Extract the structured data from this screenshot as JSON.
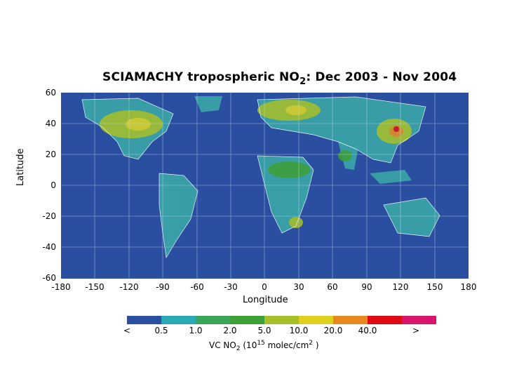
{
  "title": {
    "main": "SCIAMACHY tropospheric NO",
    "sub": "2",
    "rest": ":  Dec 2003 - Nov 2004"
  },
  "axes": {
    "ylabel": "Latitude",
    "xlabel": "Longitude",
    "yticks": [
      "60",
      "40",
      "20",
      "0",
      "-20",
      "-40",
      "-60"
    ],
    "xticks": [
      "-180",
      "-150",
      "-120",
      "-90",
      "-60",
      "-30",
      "0",
      "30",
      "60",
      "90",
      "120",
      "150",
      "180"
    ]
  },
  "colorbar": {
    "colors": [
      "#2a4fa0",
      "#2aa8b4",
      "#3aa65a",
      "#3da034",
      "#a8c028",
      "#e0d020",
      "#e88820",
      "#e00a14",
      "#d8146c"
    ],
    "labels": [
      "<",
      "0.5",
      "1.0",
      "2.0",
      "5.0",
      "10.0",
      "20.0",
      "40.0",
      ">"
    ],
    "units_prefix": "VC NO",
    "units_sub": "2",
    "units_mid1": "  (10",
    "units_sup": "15",
    "units_mid2": " molec/cm",
    "units_sup2": "2",
    "units_end": " )"
  }
}
